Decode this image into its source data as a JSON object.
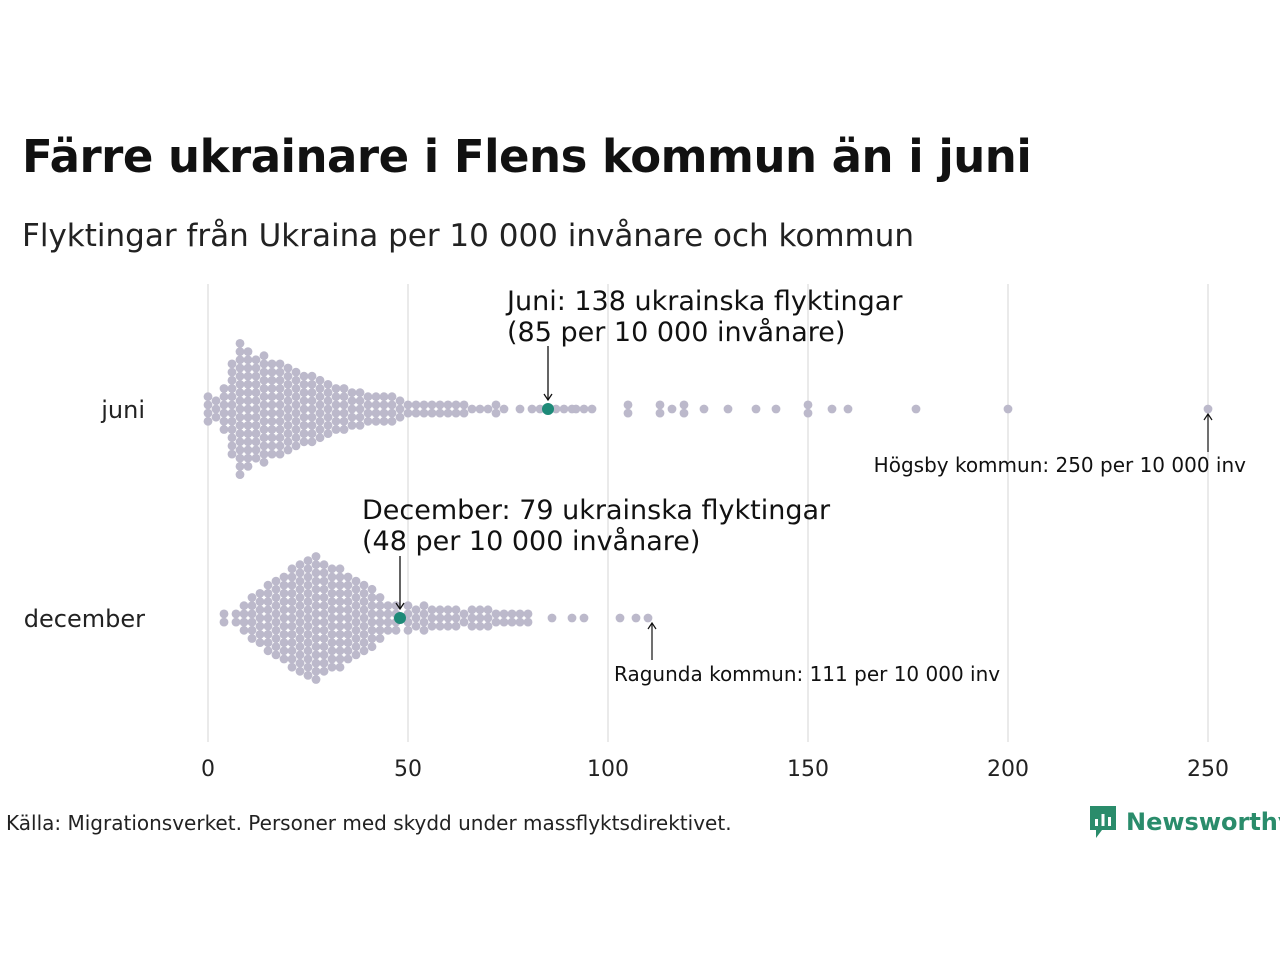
{
  "colors": {
    "dot": "#bcb9cb",
    "highlight": "#1e8a78",
    "grid": "#d4d4d4",
    "brand": "#2a8c6b"
  },
  "chart_data": {
    "type": "scatter",
    "title": "Färre ukrainare i Flens kommun än i juni",
    "subtitle": "Flyktingar från Ukraina per 10 000 invånare och kommun",
    "xlabel": "",
    "ylabel": "",
    "xlim": [
      0,
      250
    ],
    "xticks": [
      "0",
      "50",
      "100",
      "150",
      "200",
      "250"
    ],
    "xtick_values": [
      0,
      50,
      100,
      150,
      200,
      250
    ],
    "categories": [
      "juni",
      "december"
    ],
    "grid": true,
    "series": [
      {
        "name": "juni",
        "highlight": {
          "value": 85,
          "label_line1": "Juni: 138 ukrainska flyktingar",
          "label_line2": "(85 per 10 000 invånare)"
        },
        "max": {
          "value": 250,
          "label": "Högsby kommun: 250 per 10 000 inv"
        },
        "bins": [
          [
            0,
            4
          ],
          [
            2,
            3
          ],
          [
            4,
            6
          ],
          [
            6,
            12
          ],
          [
            8,
            17
          ],
          [
            10,
            15
          ],
          [
            12,
            13
          ],
          [
            14,
            14
          ],
          [
            16,
            12
          ],
          [
            18,
            12
          ],
          [
            20,
            11
          ],
          [
            22,
            10
          ],
          [
            24,
            9
          ],
          [
            26,
            9
          ],
          [
            28,
            8
          ],
          [
            30,
            7
          ],
          [
            32,
            6
          ],
          [
            34,
            6
          ],
          [
            36,
            5
          ],
          [
            38,
            5
          ],
          [
            40,
            4
          ],
          [
            42,
            4
          ],
          [
            44,
            4
          ],
          [
            46,
            4
          ],
          [
            48,
            3
          ],
          [
            50,
            2
          ],
          [
            52,
            2
          ],
          [
            54,
            2
          ],
          [
            56,
            2
          ],
          [
            58,
            2
          ],
          [
            60,
            2
          ],
          [
            62,
            2
          ],
          [
            64,
            2
          ],
          [
            66,
            1
          ],
          [
            68,
            1
          ],
          [
            70,
            1
          ],
          [
            72,
            2
          ],
          [
            74,
            1
          ],
          [
            78,
            1
          ],
          [
            81,
            1
          ],
          [
            83,
            1
          ],
          [
            87,
            1
          ],
          [
            89,
            1
          ],
          [
            91,
            1
          ],
          [
            92,
            1
          ],
          [
            94,
            1
          ],
          [
            96,
            1
          ],
          [
            105,
            2
          ],
          [
            113,
            2
          ],
          [
            116,
            1
          ],
          [
            119,
            2
          ],
          [
            124,
            1
          ],
          [
            130,
            1
          ],
          [
            137,
            1
          ],
          [
            142,
            1
          ],
          [
            150,
            2
          ],
          [
            156,
            1
          ],
          [
            160,
            1
          ],
          [
            177,
            1
          ],
          [
            200,
            1
          ],
          [
            250,
            1
          ]
        ]
      },
      {
        "name": "december",
        "highlight": {
          "value": 48,
          "label_line1": "December:  79 ukrainska flyktingar",
          "label_line2": "(48 per 10 000 invånare)"
        },
        "max": {
          "value": 111,
          "label": "Ragunda kommun: 111 per 10 000 inv"
        },
        "bins": [
          [
            4,
            2
          ],
          [
            7,
            2
          ],
          [
            9,
            4
          ],
          [
            11,
            6
          ],
          [
            13,
            7
          ],
          [
            15,
            9
          ],
          [
            17,
            10
          ],
          [
            19,
            11
          ],
          [
            21,
            13
          ],
          [
            23,
            14
          ],
          [
            25,
            15
          ],
          [
            27,
            16
          ],
          [
            29,
            14
          ],
          [
            31,
            13
          ],
          [
            33,
            13
          ],
          [
            35,
            11
          ],
          [
            37,
            10
          ],
          [
            39,
            9
          ],
          [
            41,
            8
          ],
          [
            43,
            6
          ],
          [
            45,
            4
          ],
          [
            47,
            4
          ],
          [
            50,
            4
          ],
          [
            52,
            3
          ],
          [
            54,
            4
          ],
          [
            56,
            3
          ],
          [
            58,
            3
          ],
          [
            60,
            3
          ],
          [
            62,
            3
          ],
          [
            64,
            2
          ],
          [
            66,
            3
          ],
          [
            68,
            3
          ],
          [
            70,
            3
          ],
          [
            72,
            2
          ],
          [
            74,
            2
          ],
          [
            76,
            2
          ],
          [
            78,
            2
          ],
          [
            80,
            2
          ],
          [
            86,
            1
          ],
          [
            91,
            1
          ],
          [
            94,
            1
          ],
          [
            103,
            1
          ],
          [
            107,
            1
          ],
          [
            110,
            1
          ]
        ]
      }
    ]
  },
  "footer": {
    "source": "Källa: Migrationsverket. Personer med skydd under massflyktsdirektivet.",
    "brand": "Newsworthy"
  }
}
